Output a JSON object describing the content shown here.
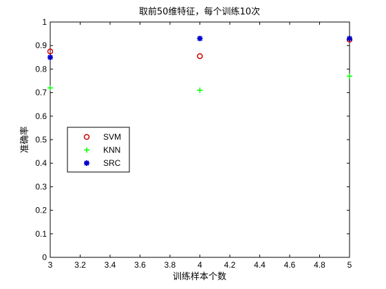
{
  "chart_data": {
    "type": "scatter",
    "title": "取前50维特征，每个训练10次",
    "xlabel": "训练样本个数",
    "ylabel": "准确率",
    "xlim": [
      3,
      5
    ],
    "ylim": [
      0,
      1
    ],
    "xticks": [
      "3",
      "3.2",
      "3.4",
      "3.6",
      "3.8",
      "4",
      "4.2",
      "4.4",
      "4.6",
      "4.8",
      "5"
    ],
    "yticks": [
      "0",
      "0.1",
      "0.2",
      "0.3",
      "0.4",
      "0.5",
      "0.6",
      "0.7",
      "0.8",
      "0.9",
      "1"
    ],
    "grid": false,
    "legend_position": "center-left",
    "series": [
      {
        "name": "SVM",
        "marker": "circle",
        "color": "#cc0000",
        "x": [
          3,
          4,
          5
        ],
        "y": [
          0.875,
          0.855,
          0.925
        ]
      },
      {
        "name": "KNN",
        "marker": "plus",
        "color": "#00ff00",
        "x": [
          3,
          4,
          5
        ],
        "y": [
          0.72,
          0.71,
          0.77
        ]
      },
      {
        "name": "SRC",
        "marker": "asterisk",
        "color": "#0000cc",
        "x": [
          3,
          4,
          5
        ],
        "y": [
          0.85,
          0.93,
          0.93
        ]
      }
    ]
  }
}
